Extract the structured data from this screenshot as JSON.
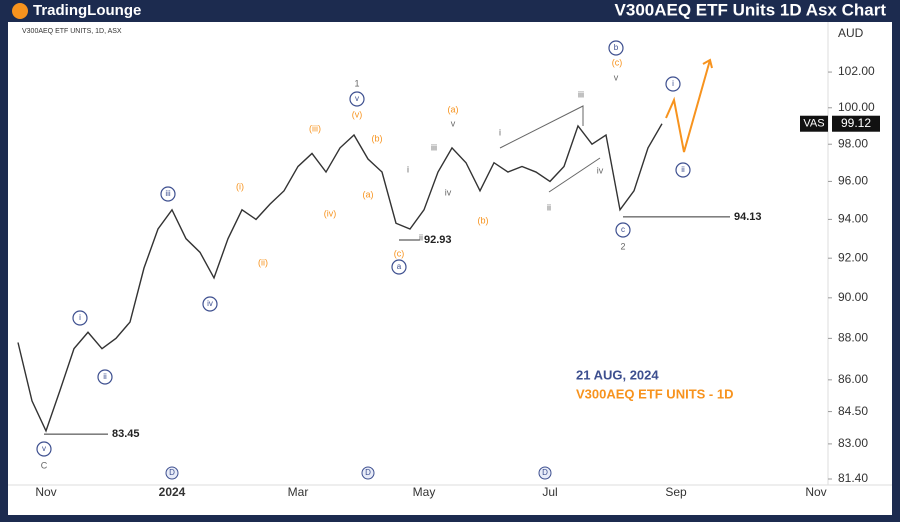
{
  "header": {
    "logo": "TradingLounge",
    "title": "V300AEQ ETF Units 1D Asx Chart"
  },
  "chart_data": {
    "type": "line",
    "symbol_info": "V300AEQ ETF UNITS, 1D, ASX",
    "currency": "AUD",
    "categories": [
      null,
      null,
      "Nov",
      null,
      null,
      null,
      null,
      null,
      null,
      null,
      null,
      "2024",
      null,
      null,
      null,
      null,
      null,
      null,
      null,
      null,
      "Mar",
      null,
      null,
      null,
      null,
      null,
      null,
      null,
      null,
      "May",
      null,
      null,
      null,
      null,
      null,
      null,
      null,
      null,
      "Jul",
      null,
      null,
      null,
      null,
      null,
      null,
      null,
      null,
      "Sep",
      null,
      null,
      null,
      null,
      null,
      null,
      null,
      null,
      null,
      "Nov",
      null,
      null,
      null
    ],
    "series": [
      {
        "name": "VAS",
        "color": "#333333",
        "values": [
          87.8,
          85,
          83.6,
          85.5,
          87.5,
          88.3,
          87.5,
          88,
          88.8,
          91.5,
          93.5,
          94.5,
          93,
          92.3,
          91,
          93,
          94.5,
          94,
          94.8,
          95.5,
          96.8,
          97.5,
          96.5,
          97.8,
          98.5,
          97.2,
          96.5,
          93.8,
          93.5,
          94.5,
          96.5,
          97.8,
          97,
          95.5,
          97,
          96.5,
          96.8,
          96.5,
          96,
          96.8,
          99,
          98,
          98.5,
          94.5,
          95.5,
          97.8,
          99.12,
          null,
          null,
          null,
          null,
          null,
          null,
          null,
          null,
          null,
          null,
          null,
          null,
          null,
          null
        ]
      }
    ],
    "ylim": [
      81.13,
      104.87
    ],
    "log_scale": true,
    "yticks": [
      {
        "value": 81.4,
        "label": "81.40"
      },
      {
        "value": 83,
        "label": "83.00"
      },
      {
        "value": 84.5,
        "label": "84.50"
      },
      {
        "value": 86,
        "label": "86.00"
      },
      {
        "value": 88,
        "label": "88.00"
      },
      {
        "value": 90,
        "label": "90.00"
      },
      {
        "value": 92,
        "label": "92.00"
      },
      {
        "value": 94,
        "label": "94.00"
      },
      {
        "value": 96,
        "label": "96.00"
      },
      {
        "value": 98,
        "label": "98.00"
      },
      {
        "value": 100,
        "label": "100.00"
      },
      {
        "value": 102,
        "label": "102.00"
      }
    ],
    "price_levels": [
      83.45,
      92.93,
      94.13
    ],
    "last_price": 99.12,
    "annotations": [
      {
        "text": "v",
        "color": "#3d4f8f"
      },
      {
        "text": "C",
        "color": "#666666"
      },
      {
        "text": "i",
        "color": "#3d4f8f"
      },
      {
        "text": "ii",
        "color": "#3d4f8f"
      },
      {
        "text": "iii",
        "color": "#3d4f8f"
      },
      {
        "text": "iv",
        "color": "#3d4f8f"
      },
      {
        "text": "(i)",
        "color": "#f7931e"
      },
      {
        "text": "(ii)",
        "color": "#f7931e"
      },
      {
        "text": "(iii)",
        "color": "#f7931e"
      },
      {
        "text": "(iv)",
        "color": "#f7931e"
      },
      {
        "text": "(v)",
        "color": "#f7931e"
      },
      {
        "text": "v",
        "color": "#3d4f8f"
      },
      {
        "text": "1",
        "color": "#666666"
      },
      {
        "text": "(b)",
        "color": "#f7931e"
      },
      {
        "text": "(a)",
        "color": "#f7931e"
      },
      {
        "text": "i",
        "color": "#666666"
      },
      {
        "text": "ii",
        "color": "#666666"
      },
      {
        "text": "iii",
        "color": "#666666"
      },
      {
        "text": "iv",
        "color": "#666666"
      },
      {
        "text": "v",
        "color": "#666666"
      },
      {
        "text": "(a)",
        "color": "#f7931e"
      },
      {
        "text": "(c)",
        "color": "#f7931e"
      },
      {
        "text": "a",
        "color": "#3d4f8f"
      },
      {
        "text": "(b)",
        "color": "#f7931e"
      },
      {
        "text": "i",
        "color": "#666666"
      },
      {
        "text": "iii",
        "color": "#666666"
      },
      {
        "text": "ii",
        "color": "#666666"
      },
      {
        "text": "iv",
        "color": "#666666"
      },
      {
        "text": "v",
        "color": "#666666"
      },
      {
        "text": "(c)",
        "color": "#f7931e"
      },
      {
        "text": "b",
        "color": "#3d4f8f"
      },
      {
        "text": "c",
        "color": "#3d4f8f"
      },
      {
        "text": "2",
        "color": "#666666"
      },
      {
        "text": "i",
        "color": "#3d4f8f"
      },
      {
        "text": "ii",
        "color": "#3d4f8f"
      }
    ],
    "dividend_marks": [
      "D",
      "D",
      "D"
    ],
    "info": {
      "date": "21 AUG, 2024",
      "label": "V300AEQ ETF UNITS - 1D"
    }
  }
}
